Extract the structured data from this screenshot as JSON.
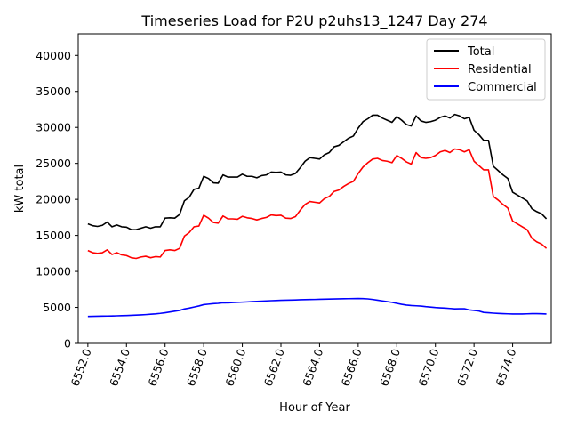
{
  "chart_data": {
    "type": "line",
    "title": "Timeseries Load for P2U p2uhs13_1247  Day 274",
    "xlabel": "Hour of Year",
    "ylabel": "kW total",
    "xlim": [
      6551.5,
      6576.0
    ],
    "ylim": [
      0,
      43000
    ],
    "xticks": [
      6552,
      6554,
      6556,
      6558,
      6560,
      6562,
      6564,
      6566,
      6568,
      6570,
      6572,
      6574
    ],
    "xtick_labels": [
      "6552.0",
      "6554.0",
      "6556.0",
      "6558.0",
      "6560.0",
      "6562.0",
      "6564.0",
      "6566.0",
      "6568.0",
      "6570.0",
      "6572.0",
      "6574.0"
    ],
    "yticks": [
      0,
      5000,
      10000,
      15000,
      20000,
      25000,
      30000,
      35000,
      40000
    ],
    "ytick_labels": [
      "0",
      "5000",
      "10000",
      "15000",
      "20000",
      "25000",
      "30000",
      "35000",
      "40000"
    ],
    "grid": false,
    "legend_position": "top-right",
    "x_start": 6552.0,
    "x_step": 0.25,
    "series": [
      {
        "name": "Total",
        "color": "#000000",
        "values": [
          16600,
          16350,
          16250,
          16400,
          16850,
          16200,
          16450,
          16200,
          16150,
          15800,
          15800,
          16000,
          16200,
          16000,
          16200,
          16200,
          17400,
          17450,
          17400,
          17900,
          19800,
          20300,
          21400,
          21550,
          23200,
          22900,
          22300,
          22250,
          23400,
          23100,
          23100,
          23100,
          23500,
          23200,
          23200,
          23000,
          23300,
          23400,
          23800,
          23750,
          23800,
          23400,
          23350,
          23600,
          24400,
          25300,
          25800,
          25700,
          25600,
          26200,
          26500,
          27300,
          27500,
          28000,
          28500,
          28800,
          29900,
          30800,
          31200,
          31700,
          31700,
          31300,
          31000,
          30700,
          31500,
          31000,
          30400,
          30200,
          31600,
          30900,
          30700,
          30800,
          31000,
          31400,
          31600,
          31300,
          31800,
          31600,
          31200,
          31400,
          29600,
          29000,
          28200,
          28200,
          24600,
          24000,
          23400,
          22900,
          21000,
          20600,
          20200,
          19800,
          18700,
          18300,
          18000,
          17300
        ]
      },
      {
        "name": "Residential",
        "color": "#ff0000",
        "values": [
          12900,
          12600,
          12500,
          12600,
          13000,
          12350,
          12600,
          12300,
          12200,
          11900,
          11800,
          12000,
          12100,
          11900,
          12050,
          12000,
          12900,
          13000,
          12900,
          13200,
          14900,
          15400,
          16200,
          16300,
          17800,
          17400,
          16800,
          16700,
          17700,
          17300,
          17300,
          17250,
          17650,
          17450,
          17350,
          17150,
          17350,
          17500,
          17850,
          17750,
          17800,
          17400,
          17350,
          17600,
          18500,
          19300,
          19700,
          19600,
          19500,
          20100,
          20400,
          21100,
          21300,
          21800,
          22200,
          22500,
          23600,
          24500,
          25100,
          25600,
          25700,
          25400,
          25300,
          25100,
          26100,
          25700,
          25200,
          24900,
          26500,
          25800,
          25700,
          25800,
          26100,
          26600,
          26800,
          26500,
          27000,
          26900,
          26600,
          26900,
          25300,
          24700,
          24100,
          24100,
          20400,
          19900,
          19300,
          18800,
          17000,
          16600,
          16200,
          15800,
          14600,
          14100,
          13800,
          13200
        ]
      },
      {
        "name": "Commercial",
        "color": "#0000ff",
        "values": [
          3750,
          3760,
          3780,
          3790,
          3800,
          3810,
          3830,
          3850,
          3870,
          3900,
          3930,
          3960,
          4000,
          4050,
          4100,
          4170,
          4260,
          4360,
          4470,
          4580,
          4780,
          4900,
          5050,
          5200,
          5380,
          5450,
          5520,
          5560,
          5650,
          5630,
          5680,
          5700,
          5730,
          5760,
          5800,
          5830,
          5860,
          5900,
          5930,
          5960,
          5980,
          6000,
          6010,
          6030,
          6060,
          6080,
          6090,
          6100,
          6120,
          6140,
          6150,
          6170,
          6190,
          6200,
          6210,
          6220,
          6230,
          6220,
          6180,
          6100,
          6000,
          5900,
          5800,
          5700,
          5560,
          5430,
          5320,
          5260,
          5220,
          5180,
          5100,
          5040,
          4980,
          4940,
          4900,
          4850,
          4800,
          4810,
          4820,
          4650,
          4580,
          4500,
          4300,
          4250,
          4200,
          4160,
          4130,
          4110,
          4090,
          4090,
          4080,
          4110,
          4130,
          4130,
          4120,
          4080
        ]
      }
    ]
  }
}
